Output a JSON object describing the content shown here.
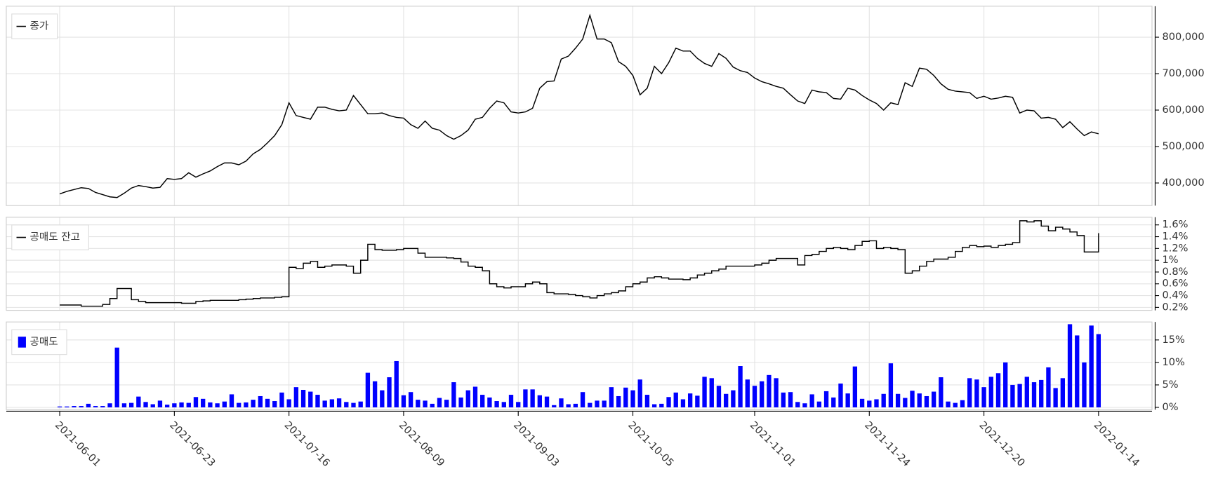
{
  "chart_data": [
    {
      "type": "line",
      "color": "#000000",
      "grid": true,
      "legend": "upper left",
      "ylim": [
        338000,
        885000
      ],
      "yticks": [
        {
          "value": 400000,
          "label": "400,000"
        },
        {
          "value": 500000,
          "label": "500,000"
        },
        {
          "value": 600000,
          "label": "600,000"
        },
        {
          "value": 700000,
          "label": "700,000"
        },
        {
          "value": 800000,
          "label": "800,000"
        }
      ],
      "series": [
        {
          "name": "종가",
          "color": "#000000",
          "values": [
            370000,
            377000,
            382000,
            387000,
            385000,
            374000,
            368000,
            362000,
            360000,
            372000,
            386000,
            393000,
            390000,
            386000,
            388000,
            412000,
            410000,
            412000,
            428000,
            416000,
            425000,
            433000,
            445000,
            455000,
            455000,
            450000,
            460000,
            480000,
            492000,
            510000,
            530000,
            560000,
            620000,
            585000,
            580000,
            575000,
            608000,
            608000,
            602000,
            598000,
            600000,
            640000,
            615000,
            590000,
            590000,
            592000,
            585000,
            580000,
            578000,
            560000,
            550000,
            570000,
            550000,
            545000,
            530000,
            520000,
            530000,
            545000,
            575000,
            580000,
            605000,
            625000,
            620000,
            595000,
            592000,
            595000,
            605000,
            660000,
            678000,
            680000,
            740000,
            748000,
            770000,
            795000,
            860000,
            795000,
            795000,
            785000,
            733000,
            720000,
            695000,
            642000,
            660000,
            720000,
            700000,
            730000,
            770000,
            762000,
            762000,
            742000,
            728000,
            720000,
            755000,
            742000,
            718000,
            708000,
            703000,
            688000,
            678000,
            672000,
            665000,
            660000,
            642000,
            625000,
            618000,
            655000,
            650000,
            648000,
            632000,
            630000,
            660000,
            655000,
            640000,
            628000,
            618000,
            600000,
            620000,
            615000,
            675000,
            665000,
            715000,
            712000,
            695000,
            672000,
            657000,
            652000,
            650000,
            648000,
            632000,
            638000,
            630000,
            633000,
            638000,
            635000,
            592000,
            600000,
            598000,
            578000,
            580000,
            575000,
            552000,
            568000,
            548000,
            530000,
            540000,
            535000
          ]
        }
      ]
    },
    {
      "type": "step",
      "color": "#000000",
      "grid": true,
      "legend": "upper left",
      "ylim": [
        0.15,
        1.73
      ],
      "yticks": [
        {
          "value": 0.2,
          "label": "0.2%"
        },
        {
          "value": 0.4,
          "label": "0.4%"
        },
        {
          "value": 0.6,
          "label": "0.6%"
        },
        {
          "value": 0.8,
          "label": "0.8%"
        },
        {
          "value": 1,
          "label": "1%"
        },
        {
          "value": 1.2,
          "label": "1.2%"
        },
        {
          "value": 1.4,
          "label": "1.4%"
        },
        {
          "value": 1.6,
          "label": "1.6%"
        }
      ],
      "series": [
        {
          "name": "공매도 잔고",
          "color": "#000000",
          "values": [
            0.24,
            0.24,
            0.24,
            0.22,
            0.22,
            0.22,
            0.25,
            0.35,
            0.52,
            0.52,
            0.33,
            0.3,
            0.28,
            0.28,
            0.28,
            0.28,
            0.28,
            0.27,
            0.27,
            0.3,
            0.31,
            0.32,
            0.32,
            0.32,
            0.32,
            0.33,
            0.34,
            0.35,
            0.36,
            0.36,
            0.37,
            0.38,
            0.88,
            0.86,
            0.95,
            0.98,
            0.88,
            0.9,
            0.92,
            0.92,
            0.9,
            0.78,
            1,
            1.27,
            1.18,
            1.17,
            1.17,
            1.18,
            1.2,
            1.2,
            1.12,
            1.05,
            1.05,
            1.05,
            1.04,
            1.03,
            0.97,
            0.9,
            0.88,
            0.82,
            0.6,
            0.55,
            0.53,
            0.55,
            0.55,
            0.6,
            0.63,
            0.6,
            0.45,
            0.43,
            0.43,
            0.42,
            0.4,
            0.38,
            0.36,
            0.4,
            0.43,
            0.45,
            0.48,
            0.55,
            0.6,
            0.63,
            0.7,
            0.72,
            0.7,
            0.68,
            0.68,
            0.67,
            0.7,
            0.75,
            0.78,
            0.82,
            0.85,
            0.9,
            0.9,
            0.9,
            0.9,
            0.92,
            0.95,
            1,
            1.03,
            1.03,
            1.03,
            0.92,
            1.08,
            1.1,
            1.15,
            1.2,
            1.22,
            1.2,
            1.18,
            1.25,
            1.32,
            1.33,
            1.2,
            1.22,
            1.2,
            1.18,
            0.78,
            0.82,
            0.9,
            0.98,
            1.02,
            1.02,
            1.05,
            1.15,
            1.22,
            1.25,
            1.23,
            1.24,
            1.22,
            1.25,
            1.27,
            1.3,
            1.67,
            1.65,
            1.67,
            1.58,
            1.5,
            1.56,
            1.53,
            1.48,
            1.42,
            1.14,
            1.14,
            1.46
          ]
        }
      ]
    },
    {
      "type": "bar",
      "color": "#0000ff",
      "grid": true,
      "legend": "upper left",
      "ylim": [
        -0.5,
        19
      ],
      "yticks": [
        {
          "value": 0,
          "label": "0%"
        },
        {
          "value": 5,
          "label": "5%"
        },
        {
          "value": 10,
          "label": "10%"
        },
        {
          "value": 15,
          "label": "15%"
        }
      ],
      "categories": [
        "2021-06-01",
        null,
        null,
        null,
        null,
        null,
        null,
        null,
        null,
        null,
        null,
        null,
        null,
        null,
        null,
        null,
        "2021-06-23",
        null,
        null,
        null,
        null,
        null,
        null,
        null,
        null,
        null,
        null,
        null,
        null,
        null,
        null,
        null,
        "2021-07-16",
        null,
        null,
        null,
        null,
        null,
        null,
        null,
        null,
        null,
        null,
        null,
        null,
        null,
        null,
        null,
        "2021-08-09",
        null,
        null,
        null,
        null,
        null,
        null,
        null,
        null,
        null,
        null,
        null,
        null,
        null,
        null,
        null,
        "2021-09-03",
        null,
        null,
        null,
        null,
        null,
        null,
        null,
        null,
        null,
        null,
        null,
        null,
        null,
        null,
        null,
        "2021-10-05",
        null,
        null,
        null,
        null,
        null,
        null,
        null,
        null,
        null,
        null,
        null,
        null,
        null,
        null,
        null,
        null,
        "2021-11-01",
        null,
        null,
        null,
        null,
        null,
        null,
        null,
        null,
        null,
        null,
        null,
        null,
        null,
        null,
        null,
        "2021-11-24",
        null,
        null,
        null,
        null,
        null,
        null,
        null,
        null,
        null,
        null,
        null,
        null,
        null,
        null,
        null,
        "2021-12-20",
        null,
        null,
        null,
        null,
        null,
        null,
        null,
        null,
        null,
        null,
        null,
        null,
        null,
        null,
        null,
        "2022-01-14"
      ],
      "series": [
        {
          "name": "공매도",
          "color": "#0000ff",
          "values": [
            0.2,
            0.2,
            0.3,
            0.3,
            0.8,
            0.3,
            0.3,
            0.9,
            13.3,
            0.9,
            1,
            2.4,
            1.2,
            0.7,
            1.5,
            0.6,
            0.9,
            1.1,
            1,
            2.3,
            1.9,
            1.1,
            0.9,
            1.3,
            2.9,
            1,
            1.1,
            1.7,
            2.5,
            1.9,
            1.4,
            3.3,
            1.8,
            4.5,
            3.9,
            3.5,
            2.8,
            1.5,
            1.8,
            2,
            1.2,
            1,
            1.3,
            7.7,
            5.8,
            3.8,
            6.7,
            10.3,
            2.7,
            3.4,
            1.7,
            1.5,
            0.8,
            2.1,
            1.7,
            5.6,
            2.2,
            3.8,
            4.6,
            2.8,
            2.2,
            1.4,
            1.2,
            2.8,
            1.2,
            4,
            4,
            2.7,
            2.4,
            0.5,
            2,
            0.7,
            0.8,
            3.4,
            1,
            1.5,
            1.5,
            4.5,
            2.5,
            4.4,
            3.8,
            6.2,
            2.8,
            0.7,
            0.8,
            2.3,
            3.3,
            1.8,
            3.1,
            2.6,
            6.8,
            6.5,
            4.8,
            3,
            3.8,
            9.2,
            6.2,
            4.8,
            5.8,
            7.2,
            6.5,
            3.3,
            3.4,
            1.2,
            0.9,
            2.9,
            1.3,
            3.6,
            2.2,
            5.3,
            3.1,
            9.1,
            1.9,
            1.5,
            1.8,
            3,
            9.8,
            3,
            2.1,
            3.7,
            3.1,
            2.5,
            3.5,
            6.7,
            1.3,
            1,
            1.6,
            6.5,
            6.2,
            4.5,
            6.8,
            7.6,
            10,
            5,
            5.2,
            6.8,
            5.6,
            6.1,
            8.9,
            4.3,
            6.5,
            18.5,
            16,
            10,
            18.2,
            16.3
          ]
        }
      ]
    }
  ]
}
